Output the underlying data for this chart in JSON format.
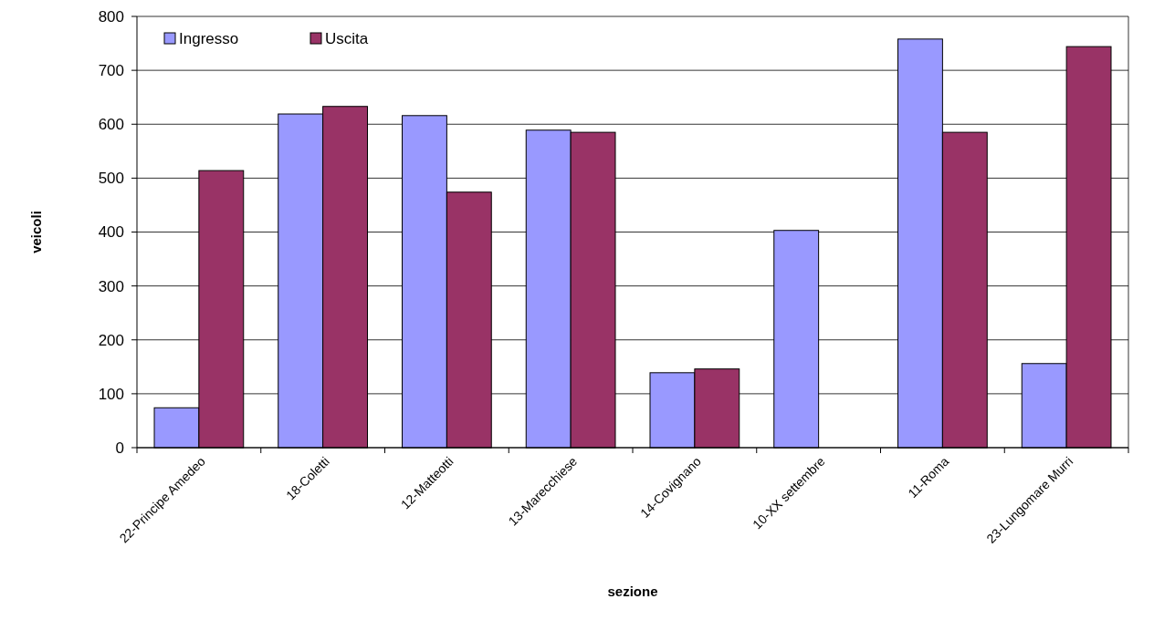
{
  "chart_data": {
    "type": "bar",
    "xlabel": "sezione",
    "ylabel": "veicoli",
    "categories": [
      "22-Principe Amedeo",
      "18-Coletti",
      "12-Matteotti",
      "13-Marecchiese",
      "14-Covignano",
      "10-XX settembre",
      "11-Roma",
      "23-Lungomare Murri"
    ],
    "series": [
      {
        "name": "Ingresso",
        "color": "#9999ff",
        "values": [
          74,
          619,
          616,
          589,
          139,
          403,
          758,
          156
        ]
      },
      {
        "name": "Uscita",
        "color": "#993366",
        "values": [
          514,
          633,
          474,
          585,
          146,
          null,
          585,
          744
        ]
      }
    ],
    "ylim": [
      0,
      800
    ],
    "yticks": [
      0,
      100,
      200,
      300,
      400,
      500,
      600,
      700,
      800
    ],
    "grid": "y",
    "legend": "top left"
  }
}
